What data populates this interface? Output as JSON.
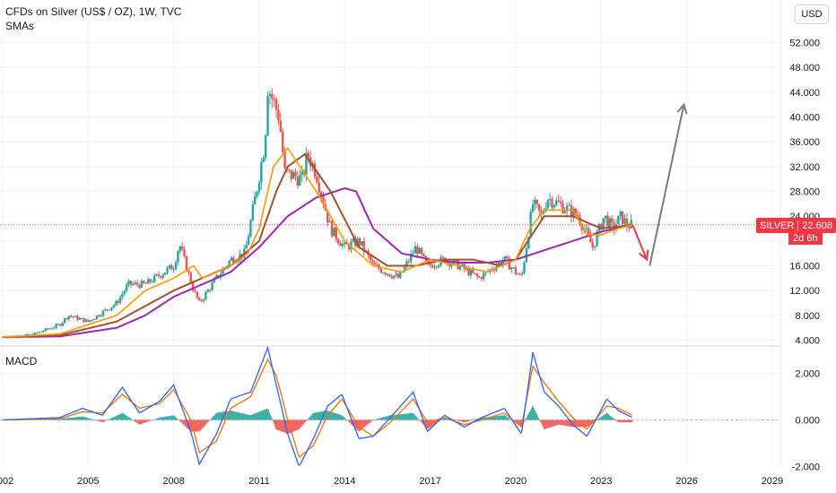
{
  "header": {
    "title": "CFDs on Silver (US$ / OZ), 1W, TVC",
    "indicator": "SMAs",
    "currency_button": "USD"
  },
  "price_badge": {
    "symbol": "SILVER",
    "price": "22.608",
    "countdown": "2d 6h"
  },
  "macd_label": "MACD",
  "colors": {
    "up": "#26a69a",
    "down": "#ef5350",
    "sma_fast": "#ff9800",
    "sma_mid": "#a0522d",
    "sma_slow": "#9c27b0",
    "macd_line": "#2962ff",
    "signal_line": "#ff6d00",
    "arrow_up": "#787b86",
    "arrow_down": "#f23645",
    "price_line": "#f23645"
  },
  "chart_data": [
    {
      "type": "candlestick",
      "title": "CFDs on Silver (US$ / OZ), 1W, TVC",
      "xlabel": "",
      "ylabel": "",
      "x_ticks": [
        "2002",
        "2005",
        "2008",
        "2011",
        "2014",
        "2017",
        "2020",
        "2023",
        "2026",
        "2029"
      ],
      "y_ticks": [
        "52.000",
        "48.000",
        "44.000",
        "40.000",
        "36.000",
        "32.000",
        "28.000",
        "24.000",
        "20.000",
        "16.000",
        "12.000",
        "8.000",
        "4.000"
      ],
      "xlim": [
        2002,
        2029.6
      ],
      "ylim": [
        3.5,
        54
      ],
      "last_price": 22.608,
      "price_series": {
        "x": [
          2002,
          2003,
          2004,
          2004.3,
          2005,
          2006,
          2006.4,
          2007,
          2008,
          2008.2,
          2008.7,
          2008.9,
          2009.5,
          2010,
          2010.5,
          2010.9,
          2011.2,
          2011.3,
          2011.7,
          2011.9,
          2012.5,
          2012.7,
          2013,
          2013.5,
          2014,
          2014.5,
          2015,
          2015.9,
          2016.5,
          2016.9,
          2017.5,
          2018,
          2018.7,
          2019,
          2019.6,
          2020.2,
          2020.6,
          2020.9,
          2021.1,
          2021.5,
          2022.2,
          2022.7,
          2023.1,
          2023.4,
          2023.7,
          2023.9,
          2024.1
        ],
        "y": [
          4.5,
          4.8,
          6.5,
          8,
          7,
          10,
          13,
          13,
          16,
          19.5,
          12,
          10,
          14,
          17,
          18,
          28,
          36,
          45,
          40,
          31,
          30,
          34,
          31,
          22,
          19,
          20,
          16,
          14,
          19,
          16,
          17,
          16,
          14,
          15,
          17,
          14,
          26,
          24,
          27,
          26,
          24,
          19,
          24,
          22,
          24,
          22.5,
          22.6
        ]
      },
      "sma_fast": {
        "name": "",
        "x": [
          2002,
          2004,
          2006,
          2007,
          2008,
          2008.7,
          2009,
          2010,
          2010.6,
          2011,
          2011.5,
          2012,
          2013,
          2014,
          2015,
          2016,
          2017,
          2018,
          2019,
          2020,
          2020.5,
          2021,
          2022,
          2022.5,
          2023,
          2023.6,
          2024.1
        ],
        "y": [
          4.5,
          5,
          8,
          12,
          14,
          16,
          14,
          16,
          18,
          22,
          32,
          35,
          28,
          20,
          16,
          15,
          17,
          16,
          15,
          17,
          22,
          25,
          25,
          21,
          21,
          22,
          22.6
        ]
      },
      "sma_mid": {
        "name": "",
        "x": [
          2002,
          2004,
          2006,
          2008,
          2009,
          2010,
          2011,
          2011.6,
          2012,
          2012.6,
          2013.5,
          2014.5,
          2015.5,
          2016.5,
          2017.5,
          2018.5,
          2019.5,
          2020,
          2021,
          2022,
          2023,
          2024.1
        ],
        "y": [
          4.5,
          4.8,
          7,
          12,
          14,
          16,
          20,
          28,
          32,
          34,
          28,
          19,
          16,
          16,
          17,
          17,
          16,
          17,
          24,
          24,
          22,
          22.6
        ]
      },
      "sma_slow": {
        "name": "",
        "x": [
          2002,
          2004,
          2006,
          2007,
          2008,
          2009,
          2010,
          2011,
          2012,
          2013,
          2014,
          2014.4,
          2015,
          2016,
          2017,
          2018,
          2019,
          2020,
          2021,
          2022,
          2023,
          2024.1
        ],
        "y": [
          4.5,
          4.6,
          6,
          8,
          11,
          13,
          15,
          19,
          24,
          27,
          28.5,
          28,
          22,
          18,
          17,
          16.5,
          16.5,
          17,
          18.5,
          20,
          21.5,
          22.6
        ]
      },
      "projection_arrows": [
        {
          "name": "",
          "from": [
            2024.1,
            22.6
          ],
          "to": [
            2024.6,
            17
          ]
        },
        {
          "name": "",
          "from": [
            2024.7,
            16
          ],
          "to": [
            2025.9,
            42
          ]
        }
      ]
    },
    {
      "type": "histogram",
      "title": "MACD",
      "y_ticks": [
        "2.000",
        "0.000",
        "-2.000"
      ],
      "ylim": [
        -2.2,
        3.2
      ],
      "x": [
        2002,
        2004,
        2004.8,
        2005.5,
        2006.2,
        2006.8,
        2007.5,
        2008,
        2008.6,
        2008.9,
        2009.5,
        2010,
        2010.7,
        2011.3,
        2011.6,
        2012,
        2012.4,
        2012.9,
        2013.4,
        2013.9,
        2014.5,
        2015,
        2015.6,
        2016.4,
        2016.9,
        2017.5,
        2018.2,
        2018.8,
        2019.6,
        2020.2,
        2020.6,
        2021,
        2021.5,
        2022,
        2022.5,
        2023.2,
        2023.6,
        2024.1
      ],
      "macd_line": [
        0,
        0.1,
        0.5,
        0.2,
        1.4,
        0.3,
        0.8,
        1.5,
        -0.5,
        -1.9,
        -0.6,
        0.9,
        1.2,
        3.1,
        1.5,
        -0.6,
        -2,
        -0.8,
        0.6,
        1.1,
        -0.8,
        -0.7,
        0.1,
        1.2,
        -0.5,
        0.2,
        -0.3,
        0.1,
        0.5,
        -0.6,
        2.9,
        1.2,
        0.6,
        -0.2,
        -0.7,
        0.9,
        0.4,
        0.1
      ],
      "signal_line": [
        0,
        0.05,
        0.35,
        0.3,
        1.1,
        0.5,
        0.7,
        1.3,
        0,
        -1.4,
        -0.9,
        0.5,
        1,
        2.6,
        1.9,
        0,
        -1.6,
        -1.1,
        0.2,
        0.9,
        -0.3,
        -0.7,
        -0.1,
        0.9,
        -0.1,
        0.1,
        -0.2,
        0,
        0.3,
        -0.3,
        2.3,
        1.6,
        0.8,
        0.1,
        -0.4,
        0.6,
        0.5,
        0.2
      ],
      "histogram_note": "histogram = macd_line - signal_line"
    }
  ]
}
